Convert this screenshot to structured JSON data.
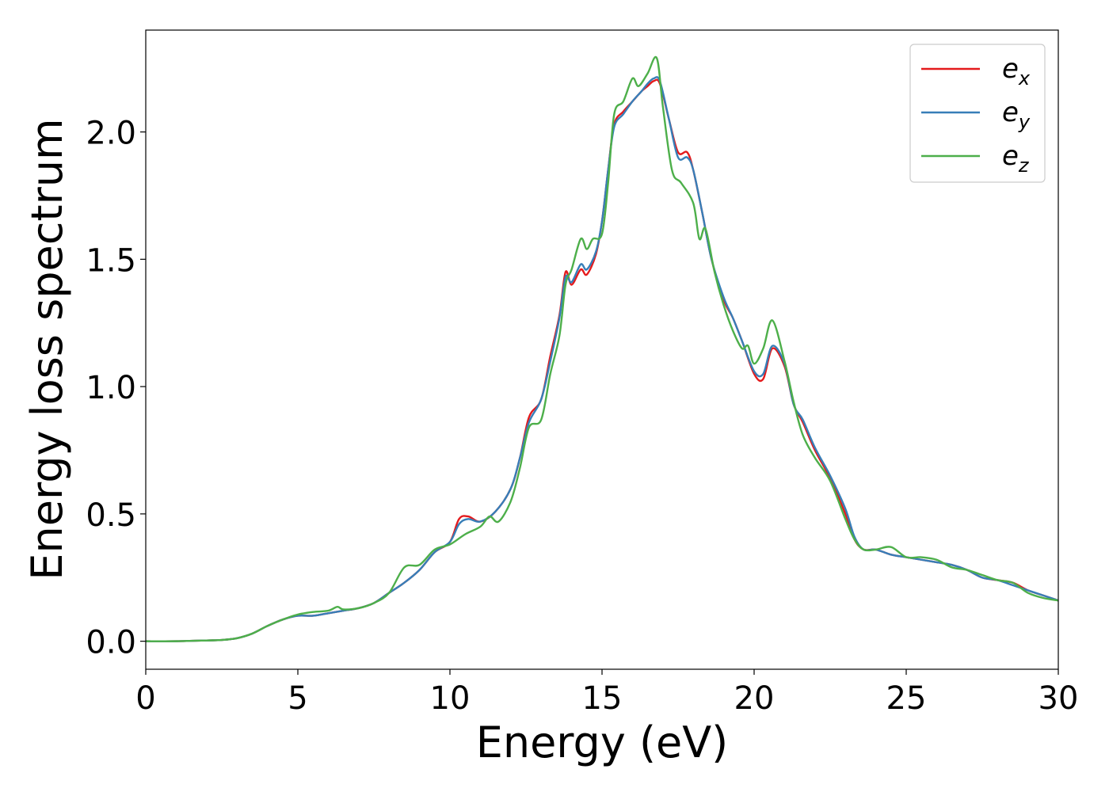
{
  "chart_data": {
    "type": "line",
    "title": "",
    "xlabel": "Energy (eV)",
    "ylabel": "Energy loss spectrum",
    "xlim": [
      0,
      30
    ],
    "ylim": [
      -0.11,
      2.4
    ],
    "xticks": [
      0,
      5,
      10,
      15,
      20,
      25,
      30
    ],
    "xtick_labels": [
      "0",
      "5",
      "10",
      "15",
      "20",
      "25",
      "30"
    ],
    "yticks": [
      0.0,
      0.5,
      1.0,
      1.5,
      2.0
    ],
    "ytick_labels": [
      "0.0",
      "0.5",
      "1.0",
      "1.5",
      "2.0"
    ],
    "grid": false,
    "legend_position": "top-right",
    "series": [
      {
        "name": "e",
        "subscript": "x",
        "color": "#e41a1c",
        "points": [
          [
            0,
            0.0
          ],
          [
            1,
            0.0
          ],
          [
            2,
            0.003
          ],
          [
            2.5,
            0.005
          ],
          [
            3,
            0.012
          ],
          [
            3.5,
            0.03
          ],
          [
            4,
            0.06
          ],
          [
            4.5,
            0.085
          ],
          [
            5,
            0.1
          ],
          [
            5.5,
            0.1
          ],
          [
            6,
            0.11
          ],
          [
            6.5,
            0.12
          ],
          [
            7,
            0.13
          ],
          [
            7.5,
            0.15
          ],
          [
            8,
            0.19
          ],
          [
            8.5,
            0.23
          ],
          [
            9,
            0.28
          ],
          [
            9.5,
            0.35
          ],
          [
            10,
            0.39
          ],
          [
            10.3,
            0.48
          ],
          [
            10.6,
            0.49
          ],
          [
            11,
            0.47
          ],
          [
            11.5,
            0.51
          ],
          [
            12,
            0.6
          ],
          [
            12.3,
            0.72
          ],
          [
            12.6,
            0.88
          ],
          [
            13,
            0.95
          ],
          [
            13.3,
            1.12
          ],
          [
            13.6,
            1.28
          ],
          [
            13.8,
            1.45
          ],
          [
            14,
            1.4
          ],
          [
            14.3,
            1.46
          ],
          [
            14.5,
            1.44
          ],
          [
            14.8,
            1.52
          ],
          [
            15,
            1.65
          ],
          [
            15.2,
            1.85
          ],
          [
            15.4,
            2.03
          ],
          [
            15.7,
            2.08
          ],
          [
            16,
            2.12
          ],
          [
            16.3,
            2.16
          ],
          [
            16.5,
            2.18
          ],
          [
            16.7,
            2.2
          ],
          [
            16.9,
            2.19
          ],
          [
            17.2,
            2.05
          ],
          [
            17.5,
            1.92
          ],
          [
            17.8,
            1.92
          ],
          [
            18,
            1.85
          ],
          [
            18.3,
            1.68
          ],
          [
            18.6,
            1.5
          ],
          [
            19,
            1.34
          ],
          [
            19.3,
            1.27
          ],
          [
            19.6,
            1.18
          ],
          [
            20,
            1.05
          ],
          [
            20.3,
            1.03
          ],
          [
            20.6,
            1.15
          ],
          [
            21,
            1.08
          ],
          [
            21.3,
            0.93
          ],
          [
            21.6,
            0.86
          ],
          [
            22,
            0.75
          ],
          [
            22.5,
            0.64
          ],
          [
            23,
            0.5
          ],
          [
            23.3,
            0.4
          ],
          [
            23.6,
            0.36
          ],
          [
            24,
            0.36
          ],
          [
            24.5,
            0.34
          ],
          [
            25,
            0.33
          ],
          [
            25.5,
            0.32
          ],
          [
            26,
            0.31
          ],
          [
            26.5,
            0.3
          ],
          [
            27,
            0.28
          ],
          [
            27.5,
            0.25
          ],
          [
            28,
            0.24
          ],
          [
            28.5,
            0.23
          ],
          [
            29,
            0.2
          ],
          [
            29.5,
            0.18
          ],
          [
            30,
            0.16
          ]
        ]
      },
      {
        "name": "e",
        "subscript": "y",
        "color": "#377eb8",
        "points": [
          [
            0,
            0.0
          ],
          [
            1,
            0.0
          ],
          [
            2,
            0.003
          ],
          [
            2.5,
            0.005
          ],
          [
            3,
            0.012
          ],
          [
            3.5,
            0.03
          ],
          [
            4,
            0.06
          ],
          [
            4.5,
            0.085
          ],
          [
            5,
            0.1
          ],
          [
            5.5,
            0.1
          ],
          [
            6,
            0.11
          ],
          [
            6.5,
            0.12
          ],
          [
            7,
            0.13
          ],
          [
            7.5,
            0.15
          ],
          [
            8,
            0.19
          ],
          [
            8.5,
            0.23
          ],
          [
            9,
            0.28
          ],
          [
            9.5,
            0.35
          ],
          [
            10,
            0.39
          ],
          [
            10.3,
            0.46
          ],
          [
            10.6,
            0.48
          ],
          [
            11,
            0.47
          ],
          [
            11.5,
            0.51
          ],
          [
            12,
            0.6
          ],
          [
            12.3,
            0.72
          ],
          [
            12.6,
            0.86
          ],
          [
            13,
            0.95
          ],
          [
            13.3,
            1.1
          ],
          [
            13.6,
            1.27
          ],
          [
            13.8,
            1.43
          ],
          [
            14,
            1.41
          ],
          [
            14.3,
            1.48
          ],
          [
            14.5,
            1.46
          ],
          [
            14.8,
            1.53
          ],
          [
            15,
            1.65
          ],
          [
            15.2,
            1.85
          ],
          [
            15.4,
            2.02
          ],
          [
            15.7,
            2.07
          ],
          [
            16,
            2.12
          ],
          [
            16.3,
            2.16
          ],
          [
            16.5,
            2.19
          ],
          [
            16.7,
            2.21
          ],
          [
            16.9,
            2.2
          ],
          [
            17.2,
            2.05
          ],
          [
            17.5,
            1.9
          ],
          [
            17.8,
            1.9
          ],
          [
            18,
            1.85
          ],
          [
            18.3,
            1.68
          ],
          [
            18.6,
            1.5
          ],
          [
            19,
            1.35
          ],
          [
            19.3,
            1.27
          ],
          [
            19.6,
            1.18
          ],
          [
            20,
            1.06
          ],
          [
            20.3,
            1.05
          ],
          [
            20.6,
            1.16
          ],
          [
            21,
            1.09
          ],
          [
            21.3,
            0.93
          ],
          [
            21.6,
            0.87
          ],
          [
            22,
            0.76
          ],
          [
            22.5,
            0.65
          ],
          [
            23,
            0.52
          ],
          [
            23.3,
            0.41
          ],
          [
            23.6,
            0.36
          ],
          [
            24,
            0.36
          ],
          [
            24.5,
            0.34
          ],
          [
            25,
            0.33
          ],
          [
            25.5,
            0.32
          ],
          [
            26,
            0.31
          ],
          [
            26.5,
            0.3
          ],
          [
            27,
            0.28
          ],
          [
            27.5,
            0.25
          ],
          [
            28,
            0.24
          ],
          [
            28.5,
            0.22
          ],
          [
            29,
            0.2
          ],
          [
            29.5,
            0.18
          ],
          [
            30,
            0.16
          ]
        ]
      },
      {
        "name": "e",
        "subscript": "z",
        "color": "#4daf4a",
        "points": [
          [
            0,
            0.0
          ],
          [
            1,
            0.0
          ],
          [
            2,
            0.003
          ],
          [
            2.5,
            0.005
          ],
          [
            3,
            0.012
          ],
          [
            3.5,
            0.03
          ],
          [
            4,
            0.06
          ],
          [
            4.5,
            0.085
          ],
          [
            5,
            0.105
          ],
          [
            5.5,
            0.115
          ],
          [
            6,
            0.12
          ],
          [
            6.3,
            0.135
          ],
          [
            6.5,
            0.125
          ],
          [
            7,
            0.13
          ],
          [
            7.5,
            0.15
          ],
          [
            8,
            0.19
          ],
          [
            8.5,
            0.29
          ],
          [
            9,
            0.3
          ],
          [
            9.5,
            0.36
          ],
          [
            10,
            0.38
          ],
          [
            10.5,
            0.42
          ],
          [
            11,
            0.45
          ],
          [
            11.3,
            0.49
          ],
          [
            11.6,
            0.47
          ],
          [
            12,
            0.55
          ],
          [
            12.3,
            0.68
          ],
          [
            12.6,
            0.84
          ],
          [
            13,
            0.87
          ],
          [
            13.3,
            1.05
          ],
          [
            13.6,
            1.2
          ],
          [
            13.8,
            1.4
          ],
          [
            14,
            1.46
          ],
          [
            14.3,
            1.58
          ],
          [
            14.5,
            1.54
          ],
          [
            14.7,
            1.58
          ],
          [
            15,
            1.6
          ],
          [
            15.2,
            1.8
          ],
          [
            15.4,
            2.07
          ],
          [
            15.7,
            2.12
          ],
          [
            16,
            2.21
          ],
          [
            16.2,
            2.18
          ],
          [
            16.5,
            2.23
          ],
          [
            16.8,
            2.29
          ],
          [
            17,
            2.1
          ],
          [
            17.3,
            1.85
          ],
          [
            17.6,
            1.8
          ],
          [
            18,
            1.72
          ],
          [
            18.2,
            1.58
          ],
          [
            18.4,
            1.62
          ],
          [
            18.7,
            1.45
          ],
          [
            19,
            1.32
          ],
          [
            19.3,
            1.22
          ],
          [
            19.6,
            1.15
          ],
          [
            19.8,
            1.16
          ],
          [
            20,
            1.09
          ],
          [
            20.3,
            1.15
          ],
          [
            20.6,
            1.26
          ],
          [
            21,
            1.1
          ],
          [
            21.3,
            0.94
          ],
          [
            21.6,
            0.81
          ],
          [
            22,
            0.72
          ],
          [
            22.5,
            0.63
          ],
          [
            23,
            0.48
          ],
          [
            23.3,
            0.4
          ],
          [
            23.6,
            0.36
          ],
          [
            24,
            0.36
          ],
          [
            24.5,
            0.37
          ],
          [
            25,
            0.33
          ],
          [
            25.5,
            0.33
          ],
          [
            26,
            0.32
          ],
          [
            26.5,
            0.29
          ],
          [
            27,
            0.28
          ],
          [
            27.5,
            0.26
          ],
          [
            28,
            0.24
          ],
          [
            28.5,
            0.23
          ],
          [
            29,
            0.19
          ],
          [
            29.5,
            0.17
          ],
          [
            30,
            0.16
          ]
        ]
      }
    ]
  }
}
